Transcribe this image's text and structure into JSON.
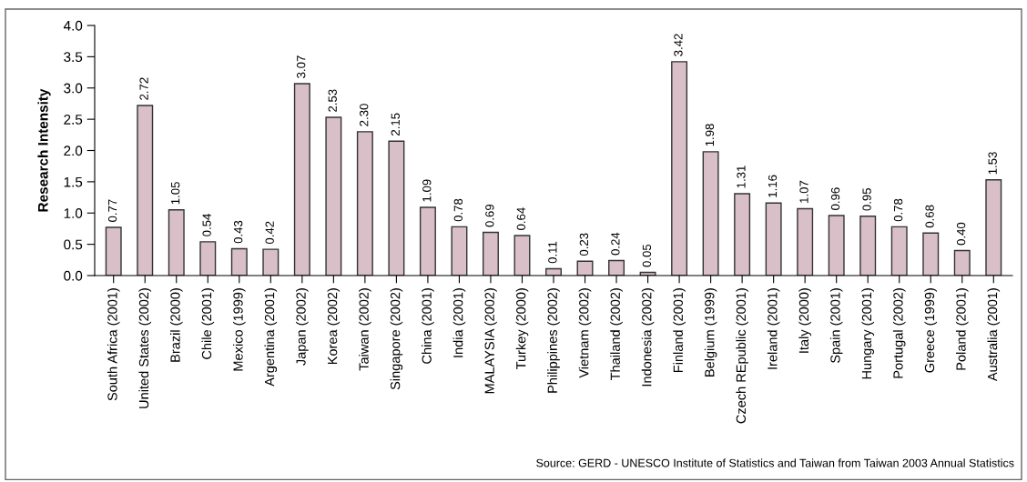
{
  "chart_data": {
    "type": "bar",
    "ylabel": "Research Intensity",
    "categories": [
      "South Africa (2001)",
      "United States (2002)",
      "Brazil (2000)",
      "Chile (2001)",
      "Mexico (1999)",
      "Argentina (2001)",
      "Japan (2002)",
      "Korea (2002)",
      "Taiwan (2002)",
      "Singapore (2002)",
      "China (2001)",
      "India (2001)",
      "MALAYSIA (2002)",
      "Turkey (2000)",
      "Philippines (2002)",
      "Vietnam (2002)",
      "Thailand (2002)",
      "Indonesia (2002)",
      "Finland (2001)",
      "Belgium (1999)",
      "Czech REpublic (2001)",
      "Ireland (2001)",
      "Italy (2000)",
      "Spain (2001)",
      "Hungary (2001)",
      "Portugal (2002)",
      "Greece (1999)",
      "Poland (2001)",
      "Australia (2001)"
    ],
    "values": [
      0.77,
      2.72,
      1.05,
      0.54,
      0.43,
      0.42,
      3.07,
      2.53,
      2.3,
      2.15,
      1.09,
      0.78,
      0.69,
      0.64,
      0.11,
      0.23,
      0.24,
      0.05,
      3.42,
      1.98,
      1.31,
      1.16,
      1.07,
      0.96,
      0.95,
      0.78,
      0.68,
      0.4,
      1.53
    ],
    "value_labels": [
      "0.77",
      "2.72",
      "1.05",
      "0.54",
      "0.43",
      "0.42",
      "3.07",
      "2.53",
      "2.30",
      "2.15",
      "1.09",
      "0.78",
      "0.69",
      "0.64",
      "0.11",
      "0.23",
      "0.24",
      "0.05",
      "3.42",
      "1.98",
      "1.31",
      "1.16",
      "1.07",
      "0.96",
      "0.95",
      "0.78",
      "0.68",
      "0.40",
      "1.53"
    ],
    "color": "#d8bfc8",
    "ylim": [
      0,
      4.0
    ],
    "yticks": [
      {
        "value": 0,
        "label": "0.0"
      },
      {
        "value": 0.5,
        "label": "0.5"
      },
      {
        "value": 1.0,
        "label": "1.0"
      },
      {
        "value": 1.5,
        "label": "1.5"
      },
      {
        "value": 2.0,
        "label": "2.0"
      },
      {
        "value": 2.5,
        "label": "2.5"
      },
      {
        "value": 3.0,
        "label": "3.0"
      },
      {
        "value": 3.5,
        "label": "3.5"
      },
      {
        "value": 4.0,
        "label": "4.0"
      }
    ],
    "grid": false,
    "legend": false,
    "annotations": [
      "Source: GERD - UNESCO Institute of Statistics and Taiwan from Taiwan 2003 Annual Statistics"
    ]
  }
}
